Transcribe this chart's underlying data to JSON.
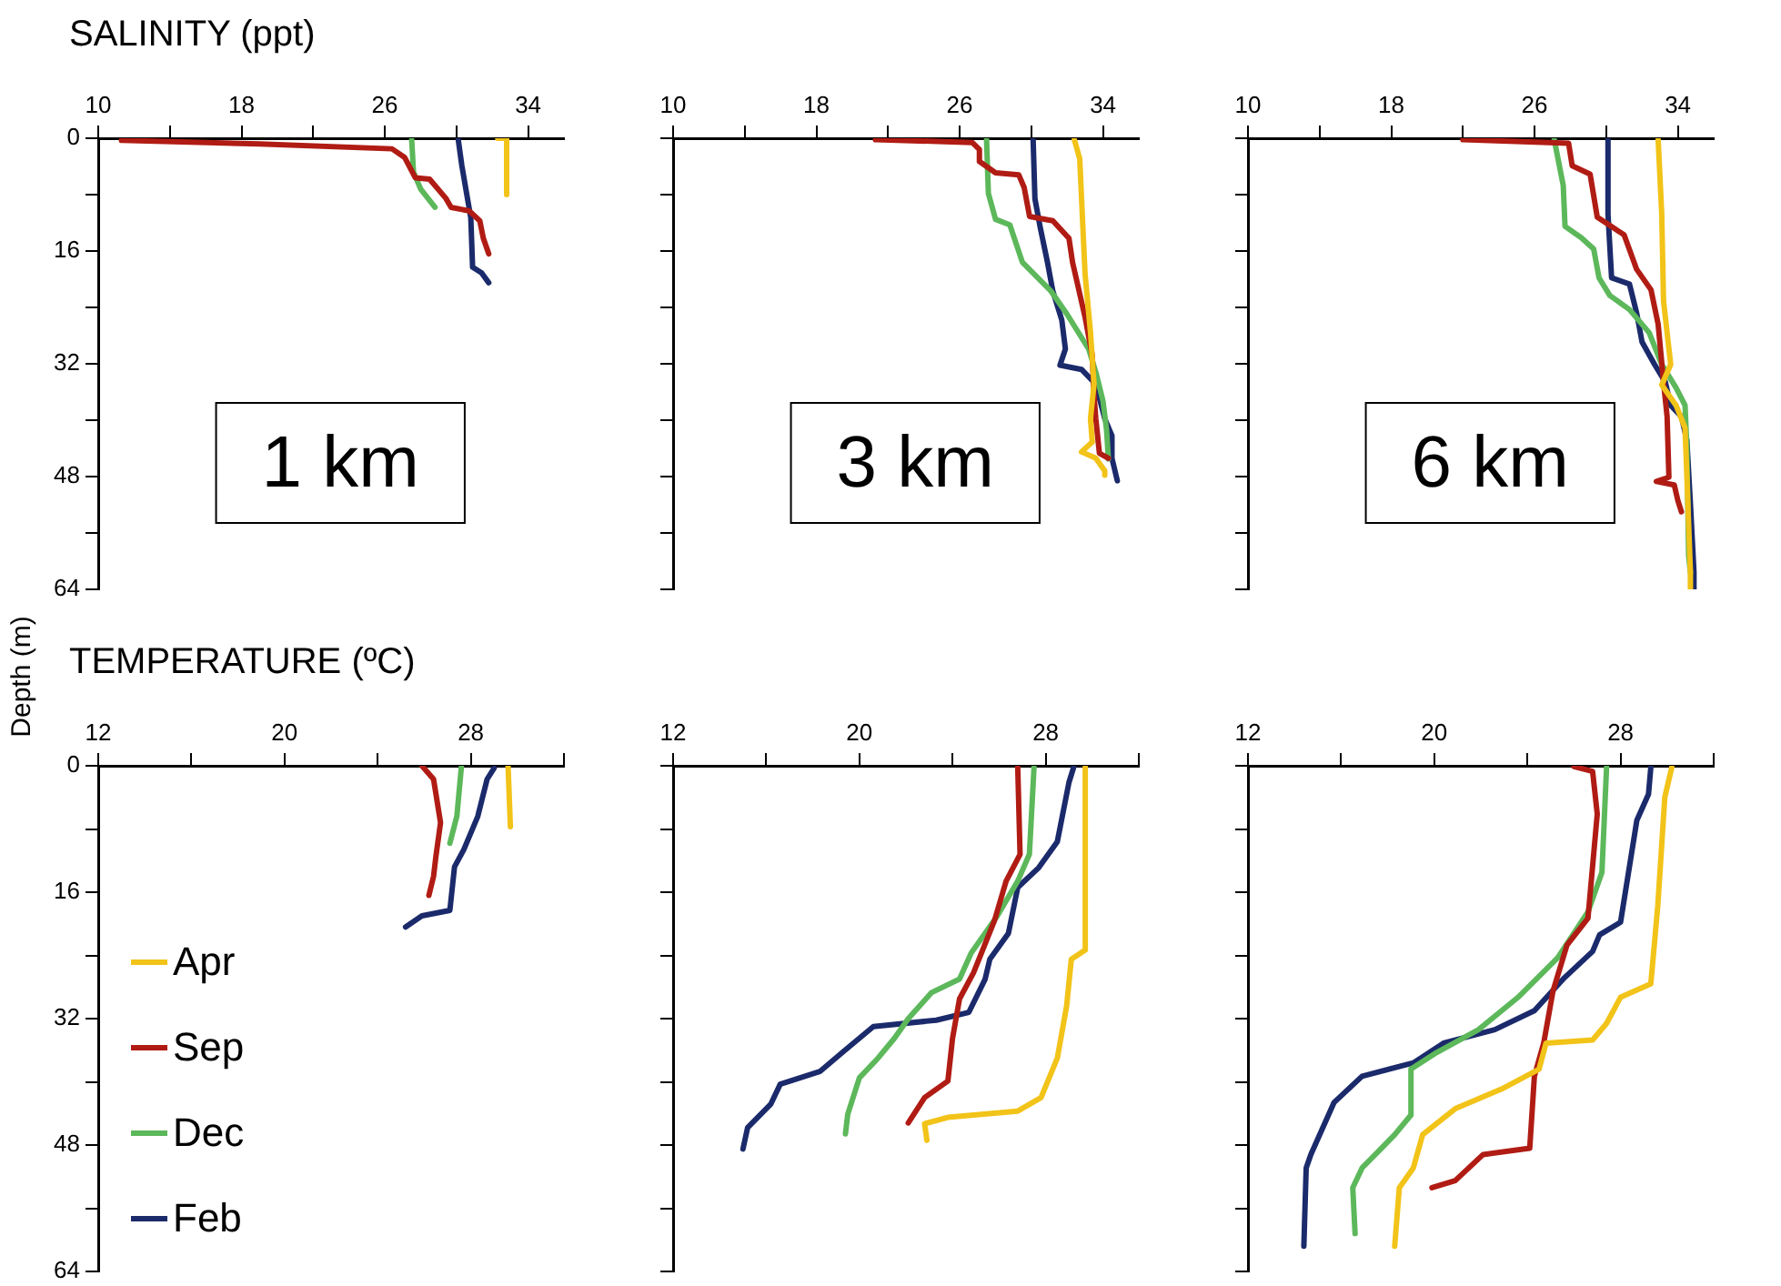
{
  "chart_data": [
    {
      "type": "line",
      "title": "SALINITY (ppt)",
      "ylabel": "Depth (m)",
      "annotations": [
        "1 km"
      ],
      "marker": "none",
      "xlim": [
        10,
        36
      ],
      "xticks": [
        10,
        {
          "value": 14,
          "label": null
        },
        18,
        {
          "value": 22,
          "label": null
        },
        26,
        {
          "value": 30,
          "label": null
        },
        34
      ],
      "ylim": [
        64,
        0
      ],
      "yticks": [
        0,
        {
          "value": 8,
          "label": null
        },
        16,
        {
          "value": 24,
          "label": null
        },
        32,
        {
          "value": 40,
          "label": null
        },
        48,
        {
          "value": 56,
          "label": null
        },
        64
      ],
      "series": [
        {
          "color": "#f2c318",
          "x": [
            32.3,
            32.8,
            32.8
          ],
          "values": [
            0,
            0,
            8
          ]
        },
        {
          "color": "#b01c14",
          "x": [
            11.3,
            19,
            26.4,
            27.1,
            27.7,
            28.5,
            29.4,
            29.7,
            30.7,
            31.3,
            31.5,
            31.8
          ],
          "values": [
            0.3,
            0.8,
            1.5,
            2.7,
            5.6,
            5.8,
            8.5,
            9.8,
            10.3,
            11.7,
            14.2,
            16.4
          ]
        },
        {
          "color": "#5cb85a",
          "x": [
            27.5,
            27.6,
            28.0,
            28.8
          ],
          "values": [
            0.2,
            4.8,
            7.2,
            9.8
          ]
        },
        {
          "color": "#1b2a6b",
          "x": [
            30.1,
            30.3,
            30.8,
            30.9,
            31.4,
            31.8
          ],
          "values": [
            0.2,
            3.9,
            11.3,
            18.3,
            19.1,
            20.5
          ]
        }
      ]
    },
    {
      "type": "line",
      "annotations": [
        "3 km"
      ],
      "marker": "none",
      "tick_labels": "x",
      "xlim": [
        10,
        36
      ],
      "xticks": [
        10,
        {
          "value": 14,
          "label": null
        },
        18,
        {
          "value": 22,
          "label": null
        },
        26,
        {
          "value": 30,
          "label": null
        },
        34
      ],
      "ylim": [
        64,
        0
      ],
      "yticks": [
        0,
        {
          "value": 8,
          "label": null
        },
        16,
        {
          "value": 24,
          "label": null
        },
        32,
        {
          "value": 40,
          "label": null
        },
        48,
        {
          "value": 56,
          "label": null
        },
        64
      ],
      "series": [
        {
          "color": "#f2c318",
          "x": [
            32.4,
            32.7,
            33.0,
            33.3,
            33.5,
            33.3,
            33.4,
            32.8,
            33.6,
            34.1,
            34.1
          ],
          "values": [
            0.2,
            2.9,
            19.3,
            27.5,
            34.9,
            39.8,
            43.1,
            44.5,
            45.4,
            47.2,
            47.8
          ]
        },
        {
          "color": "#b01c14",
          "x": [
            21.3,
            26.7,
            27.1,
            27.1,
            28.0,
            29.3,
            29.6,
            29.9,
            31.2,
            32.1,
            32.3,
            33.0,
            33.4,
            33.5,
            33.6,
            33.8,
            34.3
          ],
          "values": [
            0.2,
            0.6,
            1.6,
            3.3,
            4.9,
            5.2,
            7.0,
            11.1,
            11.7,
            14.2,
            17.6,
            25.4,
            30.8,
            36.5,
            39.8,
            44.7,
            45.4
          ]
        },
        {
          "color": "#5cb85a",
          "x": [
            27.5,
            27.6,
            28.0,
            28.8,
            29.5,
            31.1,
            32.0,
            33.2,
            33.6,
            34.0,
            34.2,
            34.3
          ],
          "values": [
            0.2,
            7.8,
            11.5,
            12.3,
            17.6,
            21.7,
            25.0,
            29.9,
            33.2,
            37.3,
            41.4,
            45.5
          ]
        },
        {
          "color": "#1b2a6b",
          "x": [
            30.1,
            30.2,
            30.5,
            30.9,
            31.2,
            31.7,
            31.9,
            31.6,
            32.8,
            33.6,
            34.1,
            34.5,
            34.5,
            34.8
          ],
          "values": [
            0.2,
            8.6,
            12.7,
            17.6,
            21.7,
            25.8,
            29.9,
            32.2,
            32.8,
            34.9,
            39.8,
            42.2,
            45.4,
            48.6
          ]
        }
      ]
    },
    {
      "type": "line",
      "annotations": [
        "6 km"
      ],
      "marker": "none",
      "tick_labels": "x",
      "xlim": [
        10,
        36
      ],
      "xticks": [
        10,
        {
          "value": 14,
          "label": null
        },
        18,
        {
          "value": 22,
          "label": null
        },
        26,
        {
          "value": 30,
          "label": null
        },
        34
      ],
      "ylim": [
        64,
        0
      ],
      "yticks": [
        0,
        {
          "value": 8,
          "label": null
        },
        16,
        {
          "value": 24,
          "label": null
        },
        32,
        {
          "value": 40,
          "label": null
        },
        48,
        {
          "value": 56,
          "label": null
        },
        64
      ],
      "series": [
        {
          "color": "#f2c318",
          "x": [
            32.9,
            33.1,
            33.2,
            33.6,
            33.1,
            33.9,
            34.4,
            34.5,
            34.7,
            34.7
          ],
          "values": [
            0.2,
            10.8,
            23.1,
            32.1,
            35.0,
            37.9,
            41.1,
            47.7,
            61.6,
            64
          ]
        },
        {
          "color": "#b01c14",
          "x": [
            22.0,
            27.9,
            28.1,
            29.1,
            29.5,
            31.0,
            31.7,
            32.5,
            32.9,
            33.2,
            33.4,
            33.5,
            32.8,
            33.8,
            34.0,
            34.2
          ],
          "values": [
            0.2,
            0.7,
            3.9,
            5.1,
            11.2,
            13.7,
            18.6,
            21.5,
            26.4,
            34.6,
            39.5,
            48.1,
            48.7,
            49.2,
            51.4,
            53.0
          ]
        },
        {
          "color": "#5cb85a",
          "x": [
            27.1,
            27.6,
            27.7,
            28.6,
            29.3,
            29.6,
            30.2,
            31.3,
            32.4,
            33.1,
            33.9,
            34.4,
            34.5,
            34.6,
            34.7
          ],
          "values": [
            0.2,
            6.7,
            12.5,
            14.1,
            15.7,
            19.8,
            22.3,
            24.3,
            27.6,
            32.1,
            35.4,
            37.9,
            43.6,
            59.2,
            61.6
          ]
        },
        {
          "color": "#1b2a6b",
          "x": [
            30.1,
            30.1,
            30.3,
            31.3,
            31.7,
            32.0,
            32.7,
            33.3,
            33.6,
            34.2,
            34.5,
            34.7,
            34.9,
            34.9
          ],
          "values": [
            0.2,
            10.8,
            19.8,
            20.7,
            24.8,
            28.9,
            32.1,
            34.6,
            37.9,
            39.5,
            42.8,
            51.8,
            61.6,
            64
          ]
        }
      ]
    },
    {
      "type": "line",
      "title": "TEMPERATURE (ºC)",
      "legend": "bottom left",
      "marker": "none",
      "xlim": [
        12,
        32
      ],
      "xticks": [
        12,
        {
          "value": 16,
          "label": null
        },
        20,
        {
          "value": 24,
          "label": null
        },
        28,
        {
          "value": 32,
          "label": null
        }
      ],
      "ylim": [
        64,
        0
      ],
      "yticks": [
        0,
        {
          "value": 8,
          "label": null
        },
        16,
        {
          "value": 24,
          "label": null
        },
        32,
        {
          "value": 40,
          "label": null
        },
        48,
        {
          "value": 56,
          "label": null
        },
        64
      ],
      "series": [
        {
          "name": "Apr",
          "color": "#f2c318",
          "x": [
            29.6,
            29.7
          ],
          "values": [
            0,
            7.7
          ]
        },
        {
          "name": "Sep",
          "color": "#b01c14",
          "x": [
            25.9,
            26.4,
            26.7,
            26.5,
            26.4,
            26.2
          ],
          "values": [
            0,
            1.7,
            7.2,
            11.5,
            14.0,
            16.4
          ]
        },
        {
          "name": "Dec",
          "color": "#5cb85a",
          "x": [
            27.6,
            27.4,
            27.1
          ],
          "values": [
            0,
            6.4,
            9.8
          ]
        },
        {
          "name": "Feb",
          "color": "#1b2a6b",
          "x": [
            29.0,
            28.7,
            28.3,
            27.7,
            27.3,
            27.1,
            25.9,
            25.2
          ],
          "values": [
            0.3,
            1.7,
            6.4,
            10.6,
            12.8,
            18.3,
            19.0,
            20.4
          ]
        }
      ]
    },
    {
      "type": "line",
      "marker": "none",
      "tick_labels": "x",
      "xlim": [
        12,
        32
      ],
      "xticks": [
        12,
        {
          "value": 16,
          "label": null
        },
        20,
        {
          "value": 24,
          "label": null
        },
        28,
        {
          "value": 32,
          "label": null
        }
      ],
      "ylim": [
        64,
        0
      ],
      "yticks": [
        0,
        {
          "value": 8,
          "label": null
        },
        16,
        {
          "value": 24,
          "label": null
        },
        32,
        {
          "value": 40,
          "label": null
        },
        48,
        {
          "value": 56,
          "label": null
        },
        64
      ],
      "series": [
        {
          "color": "#f2c318",
          "x": [
            29.7,
            29.7,
            29.1,
            28.9,
            28.5,
            27.8,
            26.8,
            23.8,
            22.8,
            22.9
          ],
          "values": [
            0.2,
            23.3,
            24.5,
            30.4,
            37.0,
            42.0,
            43.7,
            44.5,
            45.3,
            47.4
          ]
        },
        {
          "color": "#b01c14",
          "x": [
            26.8,
            26.9,
            26.3,
            25.8,
            24.9,
            24.3,
            24.0,
            23.8,
            22.8,
            22.1
          ],
          "values": [
            0.2,
            11.2,
            14.6,
            19.6,
            26.2,
            29.5,
            34.5,
            39.9,
            42.0,
            45.2
          ]
        },
        {
          "color": "#5cb85a",
          "x": [
            27.5,
            27.3,
            26.8,
            25.9,
            24.8,
            24.3,
            23.1,
            22.1,
            21.5,
            20.8,
            20.0,
            19.5,
            19.4
          ],
          "values": [
            0.2,
            11.2,
            14.6,
            19.1,
            23.7,
            27.0,
            28.7,
            32.0,
            34.5,
            37.0,
            39.5,
            44.1,
            46.6
          ]
        },
        {
          "color": "#1b2a6b",
          "x": [
            29.2,
            29.0,
            28.5,
            27.7,
            26.8,
            26.4,
            25.6,
            25.4,
            24.7,
            23.3,
            20.6,
            19.3,
            18.3,
            16.6,
            16.2,
            15.2,
            15.0
          ],
          "values": [
            0.2,
            2.1,
            9.6,
            12.9,
            15.4,
            21.2,
            24.5,
            27.0,
            31.2,
            32.2,
            33.0,
            36.2,
            38.7,
            40.3,
            42.8,
            45.8,
            48.5
          ]
        }
      ]
    },
    {
      "type": "line",
      "marker": "none",
      "tick_labels": "x",
      "xlim": [
        12,
        32
      ],
      "xticks": [
        12,
        {
          "value": 16,
          "label": null
        },
        20,
        {
          "value": 24,
          "label": null
        },
        28,
        {
          "value": 32,
          "label": null
        }
      ],
      "ylim": [
        64,
        0
      ],
      "yticks": [
        0,
        {
          "value": 8,
          "label": null
        },
        16,
        {
          "value": 24,
          "label": null
        },
        32,
        {
          "value": 40,
          "label": null
        },
        48,
        {
          "value": 56,
          "label": null
        },
        64
      ],
      "series": [
        {
          "color": "#f2c318",
          "x": [
            30.2,
            29.9,
            29.6,
            29.3,
            28.0,
            27.4,
            26.8,
            24.8,
            24.5,
            22.9,
            20.9,
            19.5,
            19.1,
            18.5,
            18.3
          ],
          "values": [
            0.2,
            4.0,
            17.7,
            27.6,
            29.3,
            32.6,
            34.7,
            35.1,
            38.4,
            40.9,
            43.4,
            46.7,
            50.9,
            53.4,
            60.8
          ]
        },
        {
          "color": "#b01c14",
          "x": [
            26.0,
            26.8,
            27.0,
            26.8,
            26.6,
            25.7,
            25.1,
            24.7,
            24.3,
            24.1,
            22.1,
            20.9,
            19.9
          ],
          "values": [
            0.1,
            0.7,
            6.1,
            12.7,
            19.3,
            22.7,
            28.5,
            35.1,
            39.3,
            48.4,
            49.2,
            52.5,
            53.4
          ]
        },
        {
          "color": "#5cb85a",
          "x": [
            27.4,
            27.2,
            26.6,
            25.3,
            23.6,
            21.9,
            20.1,
            19.0,
            19.0,
            18.3,
            16.9,
            16.5,
            16.6
          ],
          "values": [
            0.2,
            13.5,
            18.5,
            24.3,
            29.3,
            33.4,
            36.3,
            38.4,
            44.2,
            46.7,
            50.9,
            53.4,
            59.2
          ]
        },
        {
          "color": "#1b2a6b",
          "x": [
            29.3,
            29.2,
            28.7,
            28.0,
            27.1,
            26.8,
            25.6,
            24.3,
            22.6,
            20.4,
            19.1,
            16.9,
            15.7,
            14.7,
            14.5,
            14.4
          ],
          "values": [
            0.2,
            3.6,
            6.9,
            19.8,
            21.4,
            23.5,
            26.8,
            31.0,
            33.4,
            35.1,
            37.6,
            39.3,
            42.6,
            49.2,
            50.9,
            60.8
          ]
        }
      ]
    }
  ]
}
